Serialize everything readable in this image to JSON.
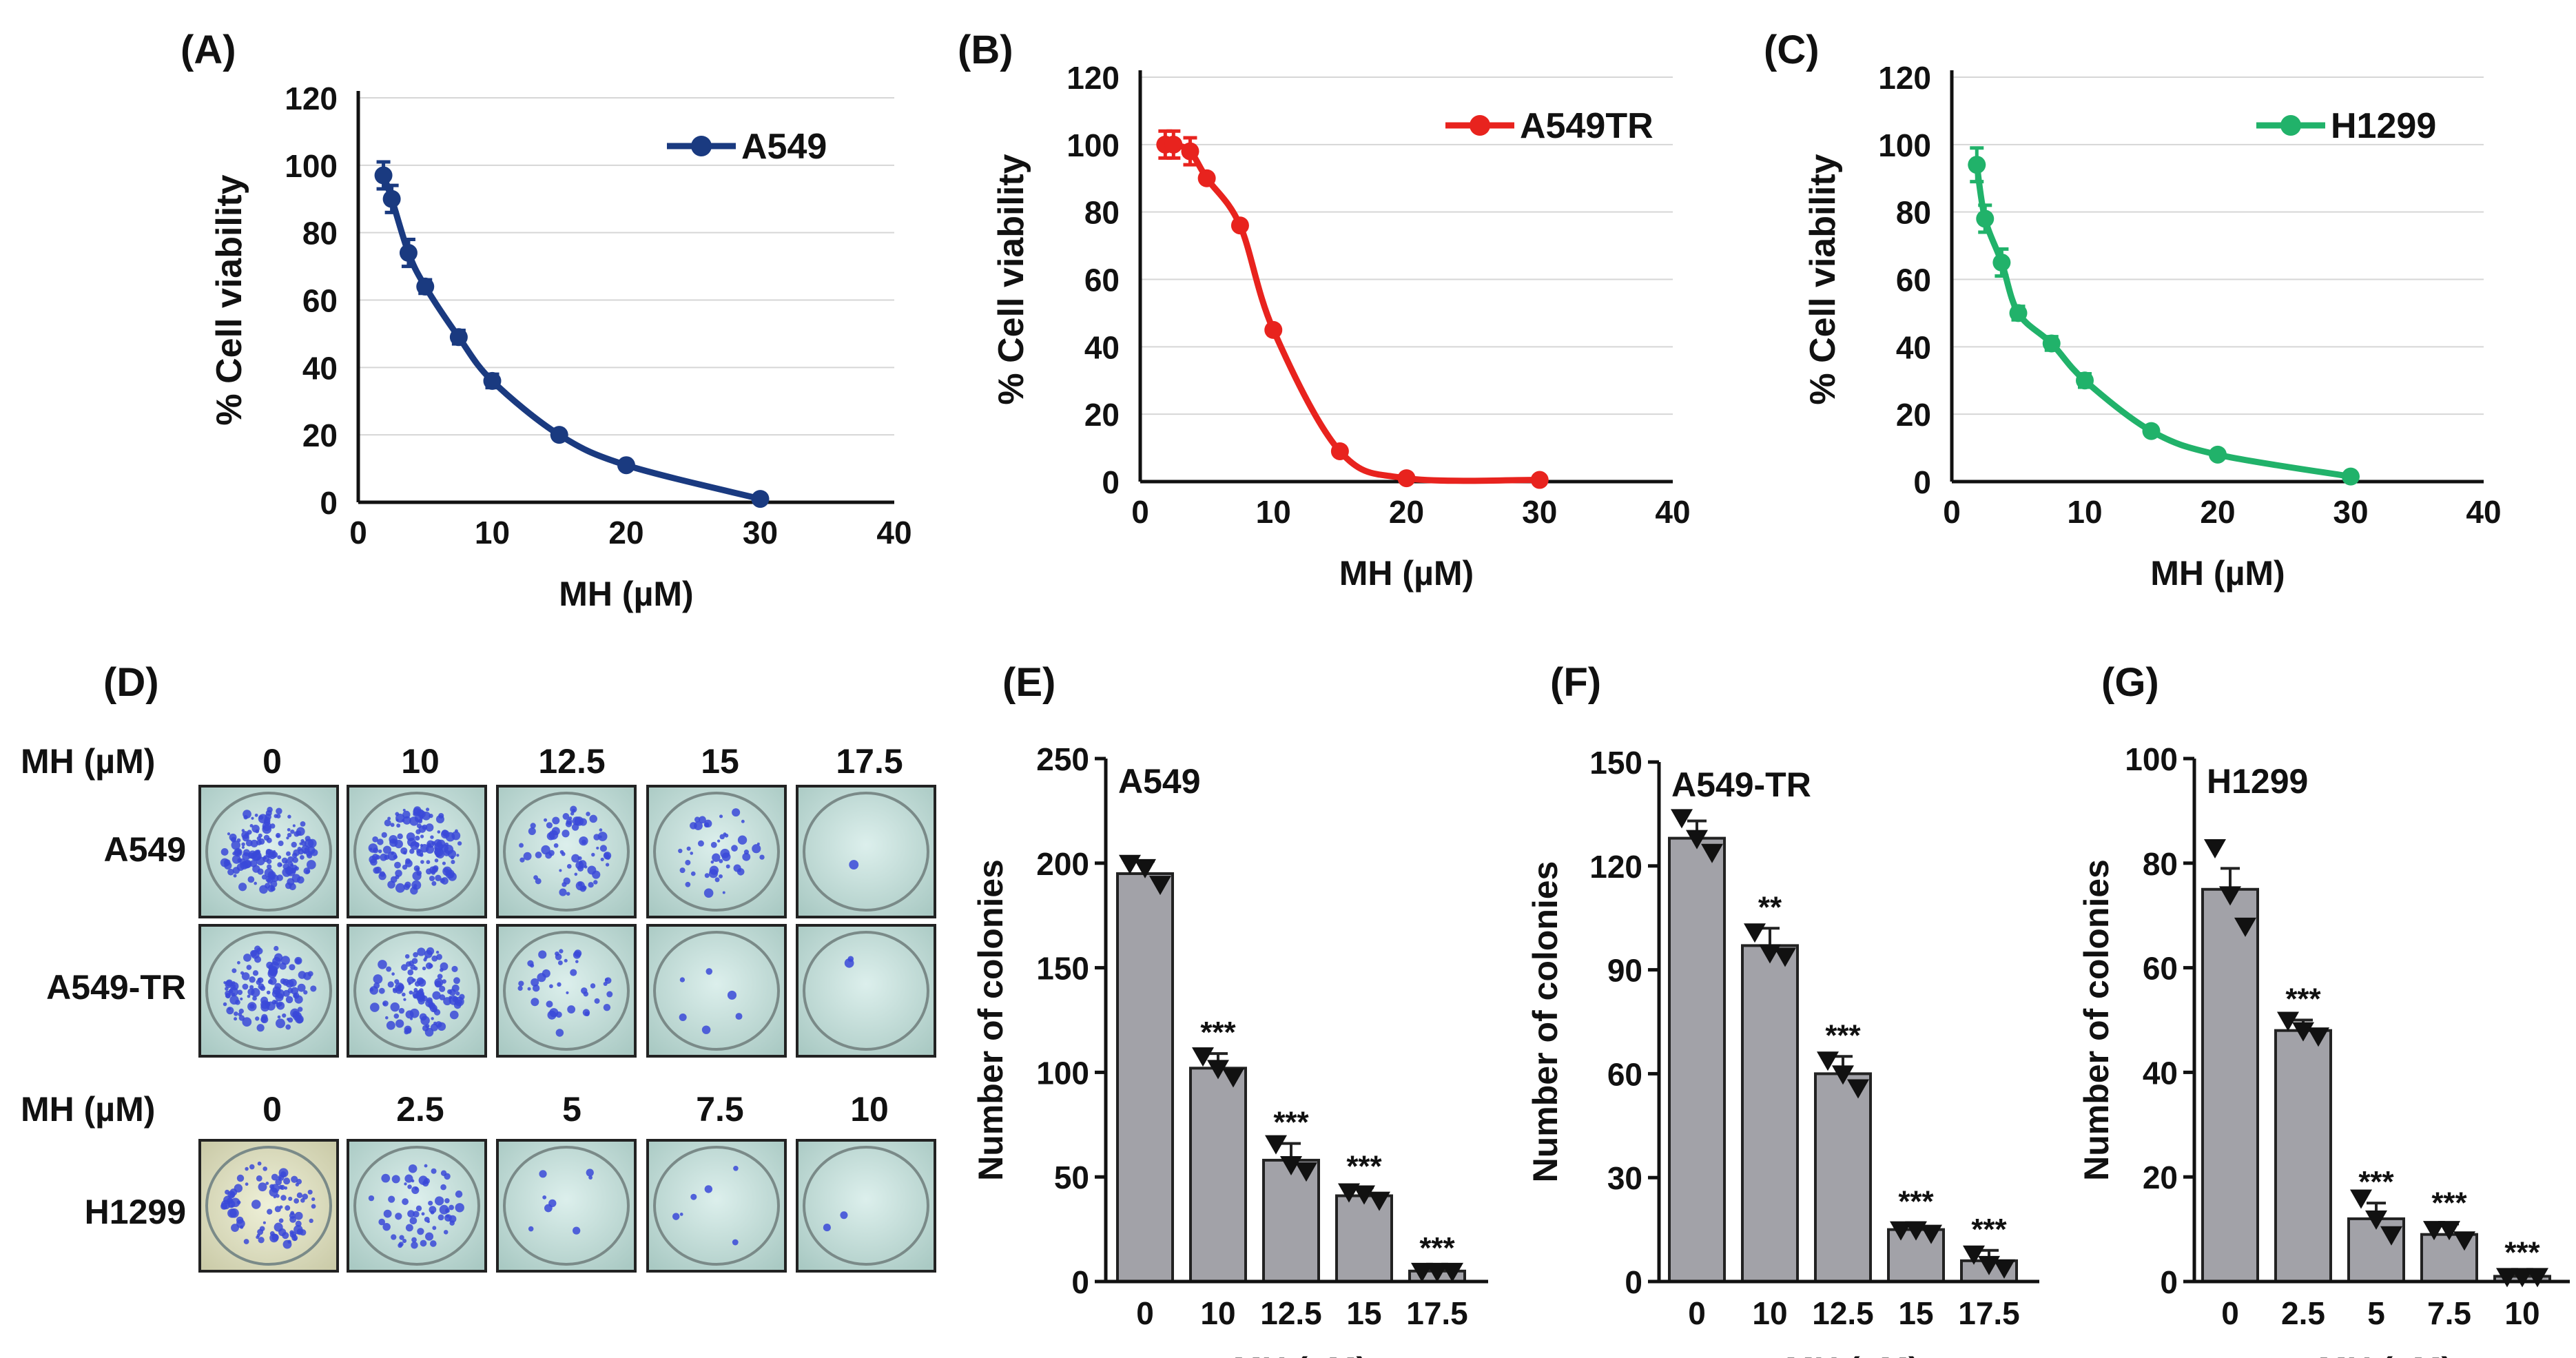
{
  "figure": {
    "x_label": "MH (µM)",
    "panels": {
      "A": "(A)",
      "B": "(B)",
      "C": "(C)",
      "D": "(D)",
      "E": "(E)",
      "F": "(F)",
      "G": "(G)"
    },
    "colony_grid": {
      "dose_label": "MH (µM)",
      "doses_top": [
        "0",
        "10",
        "12.5",
        "15",
        "17.5"
      ],
      "doses_bottom": [
        "0",
        "2.5",
        "5",
        "7.5",
        "10"
      ],
      "rows": [
        "A549",
        "A549-TR",
        "H1299"
      ]
    }
  },
  "chart_data": [
    {
      "id": "A",
      "type": "line",
      "panel_label": "(A)",
      "series": [
        {
          "name": "A549",
          "color": "#1a3a80",
          "x": [
            1.88,
            2.5,
            3.75,
            5,
            7.5,
            10,
            15,
            20,
            30
          ],
          "y": [
            97,
            90,
            74,
            64,
            49,
            36,
            20,
            11,
            1
          ],
          "err": [
            4,
            4,
            4,
            2,
            2,
            2,
            1,
            1,
            0
          ]
        }
      ],
      "xlabel": "MH (µM)",
      "ylabel": "% Cell viability",
      "xlim": [
        0,
        40
      ],
      "ylim": [
        0,
        120
      ],
      "xticks": [
        0,
        10,
        20,
        30,
        40
      ],
      "yticks": [
        0,
        20,
        40,
        60,
        80,
        100,
        120
      ],
      "grid": true,
      "legend": "top-right"
    },
    {
      "id": "B",
      "type": "line",
      "panel_label": "(B)",
      "series": [
        {
          "name": "A549TR",
          "color": "#e8231e",
          "x": [
            1.88,
            2.5,
            3.75,
            5,
            7.5,
            10,
            15,
            20,
            30
          ],
          "y": [
            100,
            100,
            98,
            90,
            76,
            45,
            9,
            1,
            0.5
          ],
          "err": [
            4,
            4,
            4,
            1,
            1,
            1,
            1,
            0,
            0
          ]
        }
      ],
      "xlabel": "MH (µM)",
      "ylabel": "% Cell viability",
      "xlim": [
        0,
        40
      ],
      "ylim": [
        0,
        120
      ],
      "xticks": [
        0,
        10,
        20,
        30,
        40
      ],
      "yticks": [
        0,
        20,
        40,
        60,
        80,
        100,
        120
      ],
      "grid": true,
      "legend": "top-right"
    },
    {
      "id": "C",
      "type": "line",
      "panel_label": "(C)",
      "series": [
        {
          "name": "H1299",
          "color": "#21b26a",
          "x": [
            1.88,
            2.5,
            3.75,
            5,
            7.5,
            10,
            15,
            20,
            30
          ],
          "y": [
            94,
            78,
            65,
            50,
            41,
            30,
            15,
            8,
            1.5
          ],
          "err": [
            5,
            4,
            4,
            2,
            2,
            2,
            1,
            1,
            0
          ]
        }
      ],
      "xlabel": "MH (µM)",
      "ylabel": "% Cell viability",
      "xlim": [
        0,
        40
      ],
      "ylim": [
        0,
        120
      ],
      "xticks": [
        0,
        10,
        20,
        30,
        40
      ],
      "yticks": [
        0,
        20,
        40,
        60,
        80,
        100,
        120
      ],
      "grid": true,
      "legend": "top-right"
    },
    {
      "id": "E",
      "type": "bar",
      "panel_label": "(E)",
      "title": "A549",
      "categories": [
        "0",
        "10",
        "12.5",
        "15",
        "17.5"
      ],
      "values": [
        195,
        102,
        58,
        41,
        5
      ],
      "err": [
        6,
        7,
        8,
        4,
        1
      ],
      "points": [
        [
          200,
          198,
          190
        ],
        [
          108,
          102,
          98
        ],
        [
          66,
          56,
          53
        ],
        [
          43,
          42,
          39
        ],
        [
          5,
          5,
          5
        ]
      ],
      "annotations": [
        "",
        "***",
        "***",
        "***",
        "***"
      ],
      "xlabel": "MH (µM)",
      "ylabel": "Number of colonies",
      "ylim": [
        0,
        250
      ],
      "yticks": [
        0,
        50,
        100,
        150,
        200,
        250
      ]
    },
    {
      "id": "F",
      "type": "bar",
      "panel_label": "(F)",
      "title": "A549-TR",
      "categories": [
        "0",
        "10",
        "12.5",
        "15",
        "17.5"
      ],
      "values": [
        128,
        97,
        60,
        15,
        6
      ],
      "err": [
        5,
        5,
        5,
        2,
        3
      ],
      "points": [
        [
          134,
          128,
          124
        ],
        [
          101,
          95,
          94
        ],
        [
          64,
          60,
          56
        ],
        [
          15,
          15,
          14
        ],
        [
          8,
          5,
          4
        ]
      ],
      "annotations": [
        "",
        "**",
        "***",
        "***",
        "***"
      ],
      "xlabel": "MH (µM)",
      "ylabel": "Number of colonies",
      "ylim": [
        0,
        150
      ],
      "yticks": [
        0,
        30,
        60,
        90,
        120,
        150
      ]
    },
    {
      "id": "G",
      "type": "bar",
      "panel_label": "(G)",
      "title": "H1299",
      "categories": [
        "0",
        "2.5",
        "5",
        "7.5",
        "10"
      ],
      "values": [
        75,
        48,
        12,
        9,
        1
      ],
      "err": [
        4,
        2,
        3,
        2,
        0.5
      ],
      "points": [
        [
          83,
          74,
          68
        ],
        [
          50,
          48,
          47
        ],
        [
          16,
          12,
          9
        ],
        [
          10,
          10,
          8
        ],
        [
          1,
          1,
          1
        ]
      ],
      "annotations": [
        "",
        "***",
        "***",
        "***",
        "***"
      ],
      "xlabel": "MH (µM)",
      "ylabel": "Number of colonies",
      "ylim": [
        0,
        100
      ],
      "yticks": [
        0,
        20,
        40,
        60,
        80,
        100
      ]
    }
  ]
}
